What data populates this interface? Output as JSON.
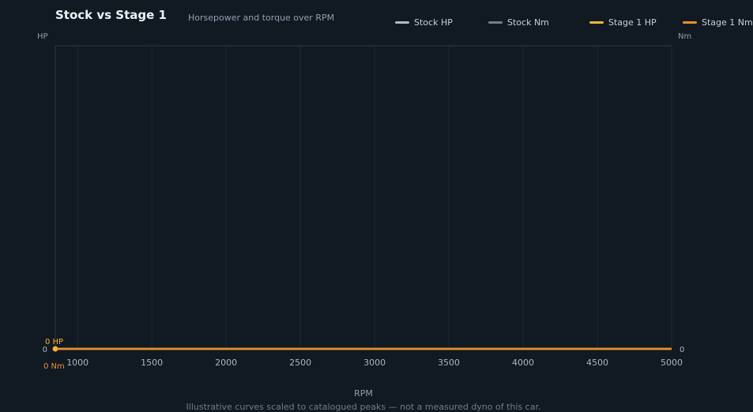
{
  "header": {
    "title": "Stock vs Stage 1",
    "subtitle": "Horsepower and torque over RPM"
  },
  "axes": {
    "left_unit": "HP",
    "right_unit": "Nm",
    "x_title": "RPM"
  },
  "footnote": "Illustrative curves scaled to catalogued peaks — not a measured dyno of this car.",
  "readout": {
    "hp": "0 HP",
    "nm": "0 Nm"
  },
  "colors": {
    "background": "#111922",
    "stock_hp": "#a9bccd",
    "stock_nm": "#6f7f91",
    "stage1_hp": "#f5b532",
    "stage1_nm": "#e8912e",
    "grid": "#1d2a36",
    "frame": "#2d3a47"
  },
  "chart_data": {
    "type": "line",
    "xlabel": "RPM",
    "y_left_label": "HP",
    "y_right_label": "Nm",
    "xlim": [
      850,
      5000
    ],
    "x_ticks": [
      1000,
      1500,
      2000,
      2500,
      3000,
      3500,
      4000,
      4500,
      5000
    ],
    "y_left_ticks": [
      0
    ],
    "y_right_ticks": [
      0
    ],
    "x": [
      850,
      1000,
      1500,
      2000,
      2500,
      3000,
      3500,
      4000,
      4500,
      5000
    ],
    "series": [
      {
        "name": "Stock HP",
        "axis": "left",
        "color": "#a9bccd",
        "values": [
          0,
          0,
          0,
          0,
          0,
          0,
          0,
          0,
          0,
          0
        ]
      },
      {
        "name": "Stock Nm",
        "axis": "right",
        "color": "#6f7f91",
        "values": [
          0,
          0,
          0,
          0,
          0,
          0,
          0,
          0,
          0,
          0
        ]
      },
      {
        "name": "Stage 1 HP",
        "axis": "left",
        "color": "#f5b532",
        "values": [
          0,
          0,
          0,
          0,
          0,
          0,
          0,
          0,
          0,
          0
        ]
      },
      {
        "name": "Stage 1 Nm",
        "axis": "right",
        "color": "#e8912e",
        "values": [
          0,
          0,
          0,
          0,
          0,
          0,
          0,
          0,
          0,
          0
        ]
      }
    ],
    "grid": true,
    "legend": "top-right"
  }
}
